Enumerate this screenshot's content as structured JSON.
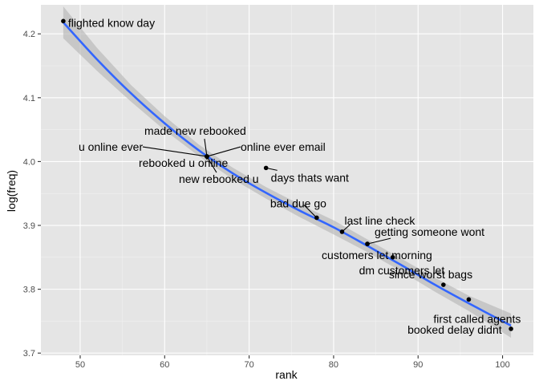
{
  "chart_data": {
    "type": "scatter",
    "xlabel": "rank",
    "ylabel": "log(freq)",
    "xlim": [
      45.35,
      103.65
    ],
    "ylim": [
      3.6965,
      4.2455
    ],
    "x_ticks": [
      50,
      60,
      70,
      80,
      90,
      100
    ],
    "y_ticks": [
      3.7,
      3.8,
      3.9,
      4.0,
      4.1,
      4.2
    ],
    "grid": true,
    "colors": {
      "panel": "#e5e5e5",
      "grid_major": "#ffffff",
      "grid_minor": "#f2f2f2",
      "smooth_line": "#3366ff",
      "ribbon": "#b3b3b3",
      "point": "#000000"
    },
    "points": [
      {
        "label": "flighted know day",
        "x": 48,
        "y": 4.22
      },
      {
        "label": "made new rebooked",
        "x": 65,
        "y": 4.008
      },
      {
        "label": "u online ever",
        "x": 65,
        "y": 4.008
      },
      {
        "label": "online ever email",
        "x": 65,
        "y": 4.008
      },
      {
        "label": "rebooked u online",
        "x": 65,
        "y": 4.008
      },
      {
        "label": "new rebooked u",
        "x": 65,
        "y": 4.008
      },
      {
        "label": "days thats want",
        "x": 72,
        "y": 3.99
      },
      {
        "label": "bad due go",
        "x": 78,
        "y": 3.912
      },
      {
        "label": "last line check",
        "x": 81,
        "y": 3.89
      },
      {
        "label": "getting someone wont",
        "x": 84,
        "y": 3.871
      },
      {
        "label": "customers let morning",
        "x": 84,
        "y": 3.871
      },
      {
        "label": "dm customers let",
        "x": 87,
        "y": 3.85
      },
      {
        "label": "since worst bags",
        "x": 93,
        "y": 3.807
      },
      {
        "label": "first called agents",
        "x": 96,
        "y": 3.784
      },
      {
        "label": "booked delay didnt",
        "x": 101,
        "y": 3.738
      }
    ],
    "smooth": {
      "x": [
        48,
        52,
        56,
        60,
        64,
        68,
        72,
        76,
        80,
        84,
        88,
        92,
        96,
        101
      ],
      "y": [
        4.218,
        4.16,
        4.107,
        4.06,
        4.018,
        3.982,
        3.951,
        3.923,
        3.897,
        3.868,
        3.838,
        3.807,
        3.778,
        3.743
      ],
      "upper": [
        4.243,
        4.178,
        4.12,
        4.071,
        4.027,
        3.991,
        3.96,
        3.933,
        3.908,
        3.878,
        3.848,
        3.818,
        3.79,
        3.762
      ],
      "lower": [
        4.193,
        4.142,
        4.094,
        4.049,
        4.009,
        3.973,
        3.942,
        3.913,
        3.886,
        3.858,
        3.828,
        3.796,
        3.766,
        3.724
      ]
    }
  }
}
